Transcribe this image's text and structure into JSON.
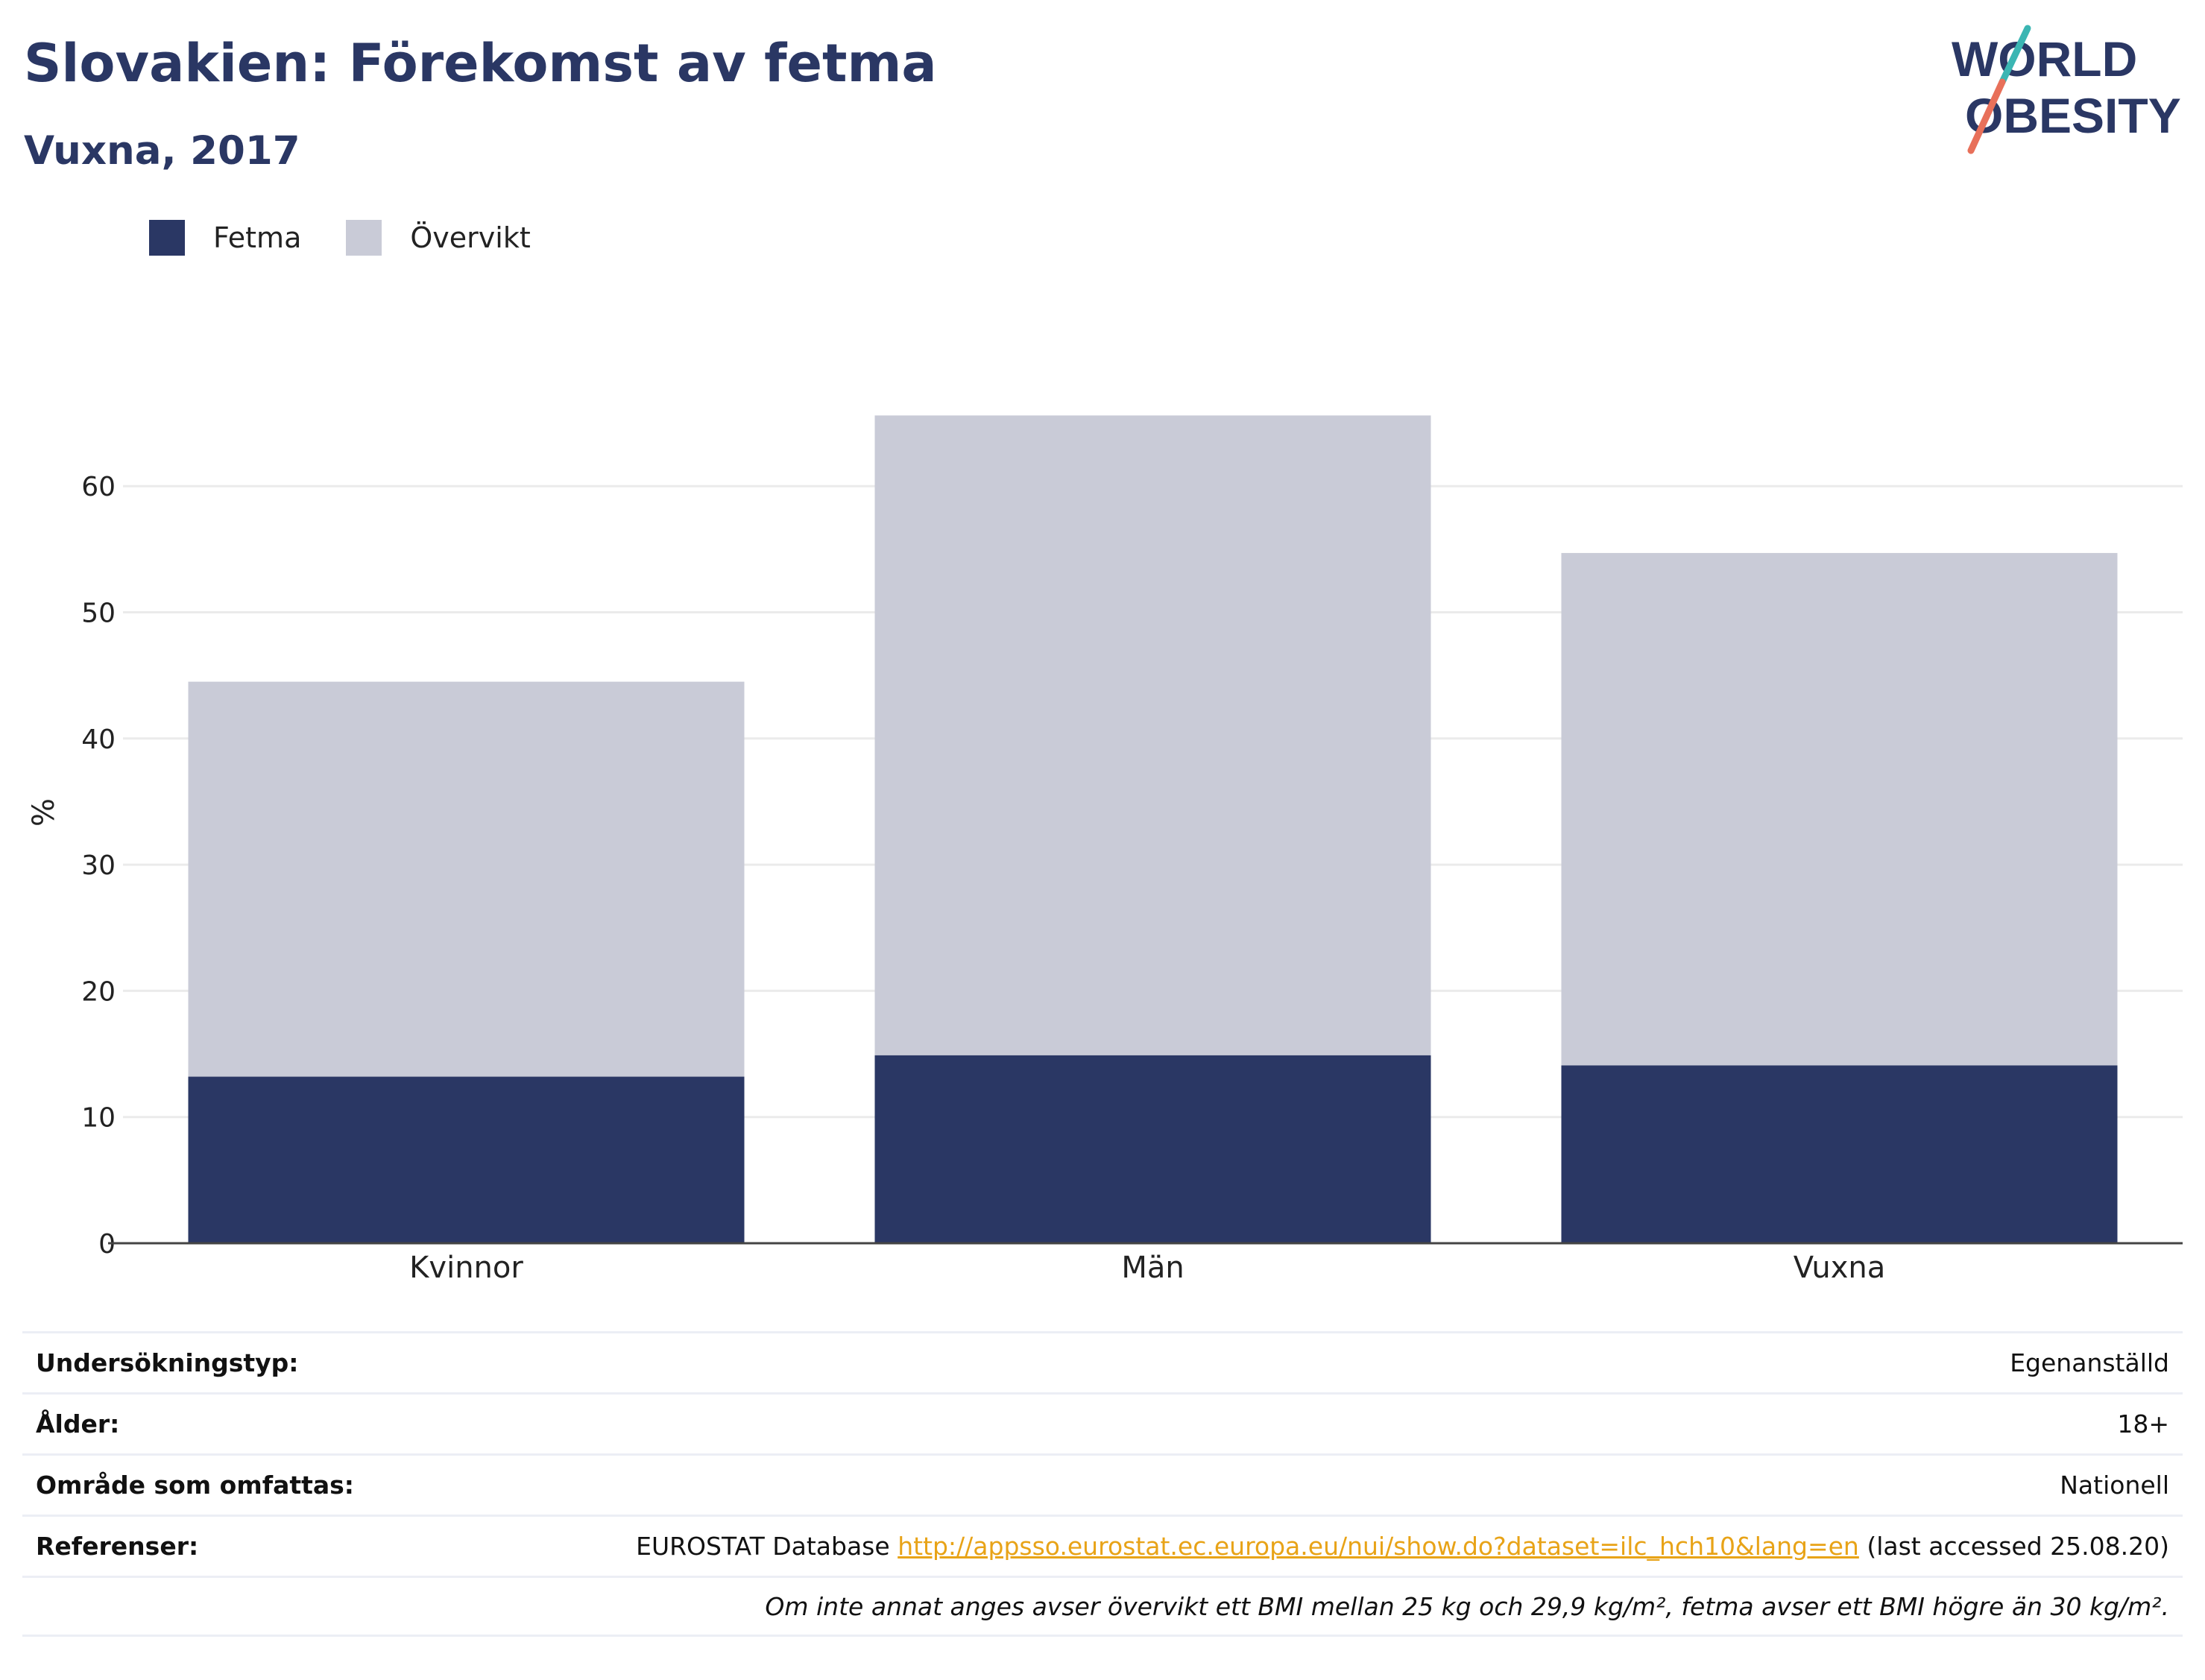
{
  "header": {
    "title": "Slovakien: Förekomst av fetma",
    "subtitle": "Vuxna, 2017"
  },
  "logo": {
    "line1": "WORLD",
    "line2": "OBESITY"
  },
  "legend": [
    {
      "label": "Fetma",
      "color": "#2a3764"
    },
    {
      "label": "Övervikt",
      "color": "#c9cbd7"
    }
  ],
  "chart_data": {
    "type": "bar",
    "stacked": true,
    "categories": [
      "Kvinnor",
      "Män",
      "Vuxna"
    ],
    "series": [
      {
        "name": "Fetma",
        "color": "#2a3764",
        "values": [
          13.2,
          14.9,
          14.1
        ]
      },
      {
        "name": "Övervikt",
        "color": "#c9cbd7",
        "values": [
          31.3,
          50.7,
          40.6
        ]
      }
    ],
    "ylabel": "%",
    "xlabel": "",
    "ylim": [
      0,
      70
    ],
    "yticks": [
      0,
      10,
      20,
      30,
      40,
      50,
      60
    ],
    "grid": true,
    "legend_position": "top-left"
  },
  "info": [
    {
      "label": "Undersökningstyp:",
      "value": "Egenanställd"
    },
    {
      "label": "Ålder:",
      "value": "18+"
    },
    {
      "label": "Område som omfattas:",
      "value": "Nationell"
    },
    {
      "label": "Referenser:",
      "value_prefix": "EUROSTAT Database",
      "link": "http://appsso.eurostat.ec.europa.eu/nui/show.do?dataset=ilc_hch10&lang=en",
      "value_suffix": "(last accessed 25.08.20)"
    }
  ],
  "note": "Om inte annat anges avser övervikt ett BMI mellan 25 kg och 29,9 kg/m², fetma avser ett BMI högre än 30 kg/m²."
}
